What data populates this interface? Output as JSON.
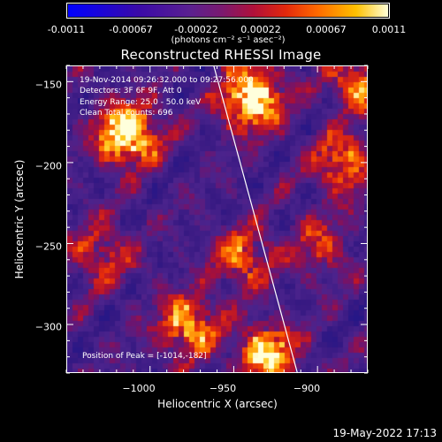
{
  "colorbar": {
    "tick_labels": [
      "-0.0011",
      "-0.00067",
      "-0.00022",
      "0.00022",
      "0.00067",
      "0.0011"
    ],
    "unit_label": "(photons cm⁻² s⁻¹ asec⁻²)",
    "range": [
      -0.0011,
      0.0011
    ]
  },
  "chart_data": {
    "type": "heatmap",
    "title": "Reconstructed RHESSI Image",
    "xlabel": "Heliocentric X (arcsec)",
    "ylabel": "Heliocentric Y (arcsec)",
    "xlim": [
      -1050,
      -870
    ],
    "ylim": [
      -330,
      -140
    ],
    "x_ticks": [
      -1000,
      -950,
      -900
    ],
    "y_ticks": [
      -150,
      -200,
      -250,
      -300
    ],
    "x_tick_labels": [
      "−1000",
      "−950",
      "−900"
    ],
    "y_tick_labels": [
      "−150",
      "−200",
      "−250",
      "−300"
    ],
    "peak_position": [
      -1014,
      -182
    ],
    "hot_spots": [
      {
        "x": -1014,
        "y": -182,
        "intensity": 1.0
      },
      {
        "x": -940,
        "y": -160,
        "intensity": 0.95
      },
      {
        "x": -978,
        "y": -300,
        "intensity": 0.7
      },
      {
        "x": -930,
        "y": -318,
        "intensity": 0.8
      },
      {
        "x": -945,
        "y": -258,
        "intensity": 0.55
      },
      {
        "x": -885,
        "y": -200,
        "intensity": 0.6
      },
      {
        "x": -875,
        "y": -150,
        "intensity": 0.6
      },
      {
        "x": -1030,
        "y": -255,
        "intensity": 0.45
      },
      {
        "x": -898,
        "y": -252,
        "intensity": 0.4
      }
    ],
    "limb_line": {
      "x": [
        -962,
        -912
      ],
      "y": [
        -140,
        -330
      ]
    }
  },
  "info": {
    "line1": "19-Nov-2014 09:26:32.000 to 09:27:56.000",
    "line2": "Detectors: 3F 6F 9F, Att 0",
    "line3": "Energy Range: 25.0 - 50.0 keV",
    "line4": "Clean    Total counts: 696",
    "peak": "Position of Peak = [-1014,-182]"
  },
  "footer": {
    "timestamp": "19-May-2022 17:13"
  }
}
